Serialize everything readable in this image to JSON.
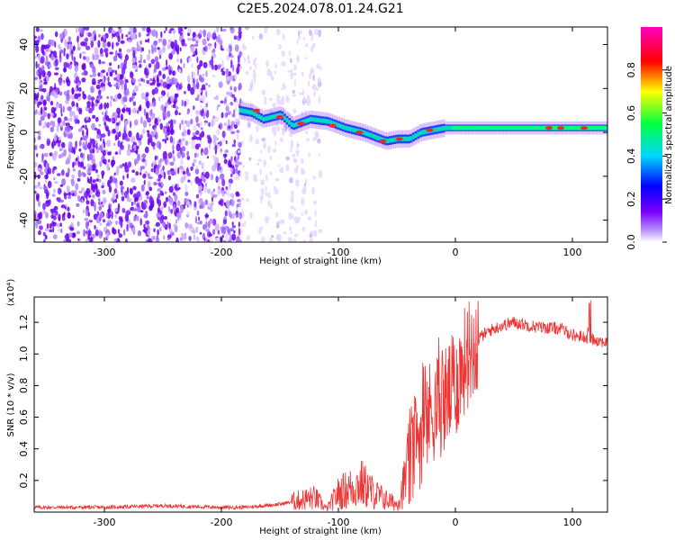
{
  "figure_title": "C2E5.2024.078.01.24.G21",
  "chart_data": [
    {
      "type": "heatmap",
      "xlabel": "Height of straight line (km)",
      "ylabel": "Frequency (Hz)",
      "xlim": [
        -360,
        130
      ],
      "ylim": [
        -50,
        48
      ],
      "x_ticks": [
        -300,
        -200,
        -100,
        0,
        100
      ],
      "y_ticks": [
        -40,
        -20,
        0,
        20,
        40
      ],
      "x_tick_labels": [
        "-300",
        "-200",
        "-100",
        "0",
        "100"
      ],
      "y_tick_labels": [
        "-40",
        "-20",
        "0",
        "20",
        "40"
      ],
      "colorbar": {
        "label": "Normalized spectral amplitude",
        "range": [
          0,
          1
        ],
        "ticks": [
          0.0,
          0.2,
          0.4,
          0.6,
          0.8
        ],
        "tick_labels": [
          "0.0",
          "0.2",
          "0.4",
          "0.6",
          "0.8"
        ],
        "colors": [
          "#ffffff",
          "#7b00ff",
          "#0000ff",
          "#00d8ff",
          "#00ff40",
          "#ffff00",
          "#ff0000",
          "#ff00c0"
        ]
      },
      "ridge": {
        "x": [
          -185,
          -175,
          -165,
          -150,
          -140,
          -125,
          -110,
          -95,
          -80,
          -70,
          -60,
          -50,
          -40,
          -30,
          -20,
          -10,
          0,
          20,
          50,
          80,
          100,
          130
        ],
        "y": [
          10,
          9,
          6,
          8,
          3,
          6,
          5,
          2,
          0,
          -2,
          -4,
          -3,
          -3,
          0,
          1,
          2,
          2,
          2,
          2,
          2,
          2,
          2
        ]
      },
      "noise_region_x": [
        -360,
        -115
      ]
    },
    {
      "type": "line",
      "xlabel": "Height of straight line (km)",
      "ylabel": "SNR (10 * v/v)",
      "y_multiplier_label": "(x10⁴)",
      "xlim": [
        -360,
        130
      ],
      "ylim": [
        0,
        1.36
      ],
      "x_ticks": [
        -300,
        -200,
        -100,
        0,
        100
      ],
      "y_ticks": [
        0.2,
        0.4,
        0.6,
        0.8,
        1.0,
        1.2
      ],
      "x_tick_labels": [
        "-300",
        "-200",
        "-100",
        "0",
        "100"
      ],
      "y_tick_labels": [
        "0.2",
        "0.4",
        "0.6",
        "0.8",
        "1.0",
        "1.2"
      ],
      "line_color": "#ee3333",
      "envelope": {
        "x": [
          -360,
          -300,
          -250,
          -200,
          -180,
          -150,
          -130,
          -120,
          -110,
          -100,
          -90,
          -80,
          -70,
          -60,
          -50,
          -45,
          -40,
          -30,
          -20,
          -10,
          0,
          10,
          20,
          30,
          40,
          50,
          70,
          90,
          100,
          115,
          130
        ],
        "y": [
          0.03,
          0.03,
          0.04,
          0.03,
          0.03,
          0.05,
          0.08,
          0.09,
          0.02,
          0.12,
          0.15,
          0.18,
          0.12,
          0.08,
          0.05,
          0.15,
          0.3,
          0.5,
          0.65,
          0.7,
          0.8,
          1.0,
          1.1,
          1.15,
          1.18,
          1.2,
          1.17,
          1.16,
          1.12,
          1.1,
          1.07
        ]
      }
    }
  ]
}
